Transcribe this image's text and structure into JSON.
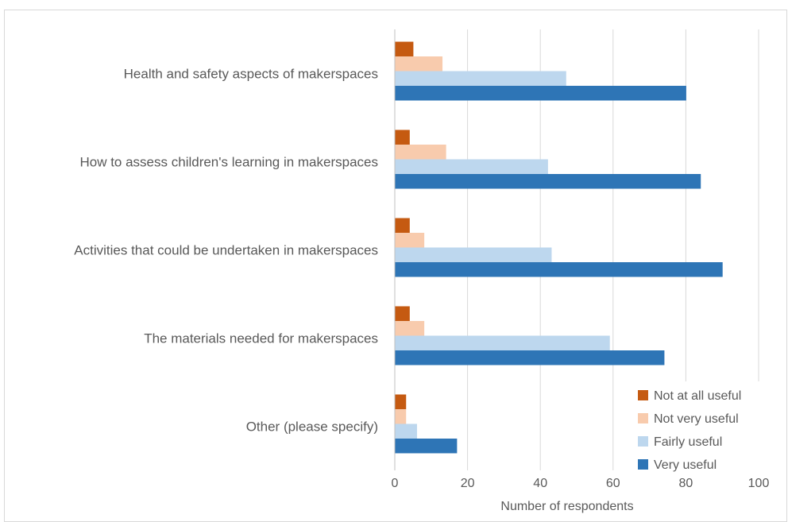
{
  "chart_data": {
    "type": "bar",
    "orientation": "horizontal",
    "title": "",
    "xlabel": "Number of respondents",
    "ylabel": "",
    "xlim": [
      0,
      100
    ],
    "xticks": [
      0,
      20,
      40,
      60,
      80,
      100
    ],
    "grid": "vertical",
    "legend_position": "bottom-right",
    "categories": [
      "Health and safety aspects of makerspaces",
      "How to assess children's learning in makerspaces",
      "Activities that could be undertaken in makerspaces",
      "The materials needed for makerspaces",
      "Other (please specify)"
    ],
    "series": [
      {
        "name": "Not at all useful",
        "color": "#c55a11",
        "values": [
          5,
          4,
          4,
          4,
          3
        ]
      },
      {
        "name": "Not very useful",
        "color": "#f8cbad",
        "values": [
          13,
          14,
          8,
          8,
          3
        ]
      },
      {
        "name": "Fairly useful",
        "color": "#bdd7ee",
        "values": [
          47,
          42,
          43,
          59,
          6
        ]
      },
      {
        "name": "Very useful",
        "color": "#2e75b6",
        "values": [
          80,
          84,
          90,
          74,
          17
        ]
      }
    ]
  }
}
